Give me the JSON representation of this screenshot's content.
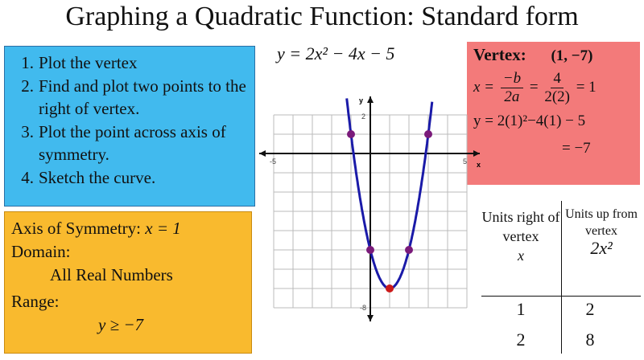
{
  "title": "Graphing a Quadratic Function: Standard form",
  "equation": "y = 2x² − 4x − 5",
  "steps": [
    {
      "num": "1.",
      "text": "Plot the vertex"
    },
    {
      "num": "2.",
      "text": "Find and plot two points to the right of vertex."
    },
    {
      "num": "3.",
      "text": "Plot the point across axis of symmetry."
    },
    {
      "num": "4.",
      "text": "Sketch the curve."
    }
  ],
  "info": {
    "axis_label": "Axis of Symmetry:",
    "axis_value": "x = 1",
    "domain_label": "Domain:",
    "domain_value": "All Real Numbers",
    "range_label": "Range:",
    "range_value": "y ≥ −7"
  },
  "vertex": {
    "label": "Vertex:",
    "value": "(1, −7)",
    "x_lhs": "x =",
    "x_num1": "−b",
    "x_den1": "2a",
    "x_eq": "=",
    "x_num2": "4",
    "x_den2": "2(2)",
    "x_result": "= 1",
    "y_line": "y = 2(1)²−4(1) − 5",
    "y_result": "= −7"
  },
  "table": {
    "col1_header": "Units right of vertex",
    "col1_var": "x",
    "col2_header": "Units up from vertex",
    "col2_var": "2x²",
    "rows": [
      [
        "1",
        "2"
      ],
      [
        "2",
        "8"
      ]
    ]
  },
  "graph": {
    "x_axis_label": "x",
    "y_axis_label": "y",
    "x_range": [
      -5,
      5
    ],
    "y_range": [
      -8,
      2
    ],
    "x_tick_labels": [
      "-5",
      "5"
    ],
    "y_tick_labels": [
      "2",
      "-8"
    ],
    "function": {
      "a": 2,
      "b": -4,
      "c": -5
    },
    "points": [
      [
        -1,
        1
      ],
      [
        0,
        -5
      ],
      [
        1,
        -7
      ],
      [
        2,
        -5
      ],
      [
        3,
        1
      ]
    ],
    "vertex_point": [
      1,
      -7
    ],
    "curve_color": "#1a1aa8",
    "point_color": "#7a1a7a",
    "vertex_color": "#cc1a1a"
  },
  "colors": {
    "steps_bg": "#41baee",
    "info_bg": "#f9ba2e",
    "vertex_bg": "#f37a7a"
  }
}
